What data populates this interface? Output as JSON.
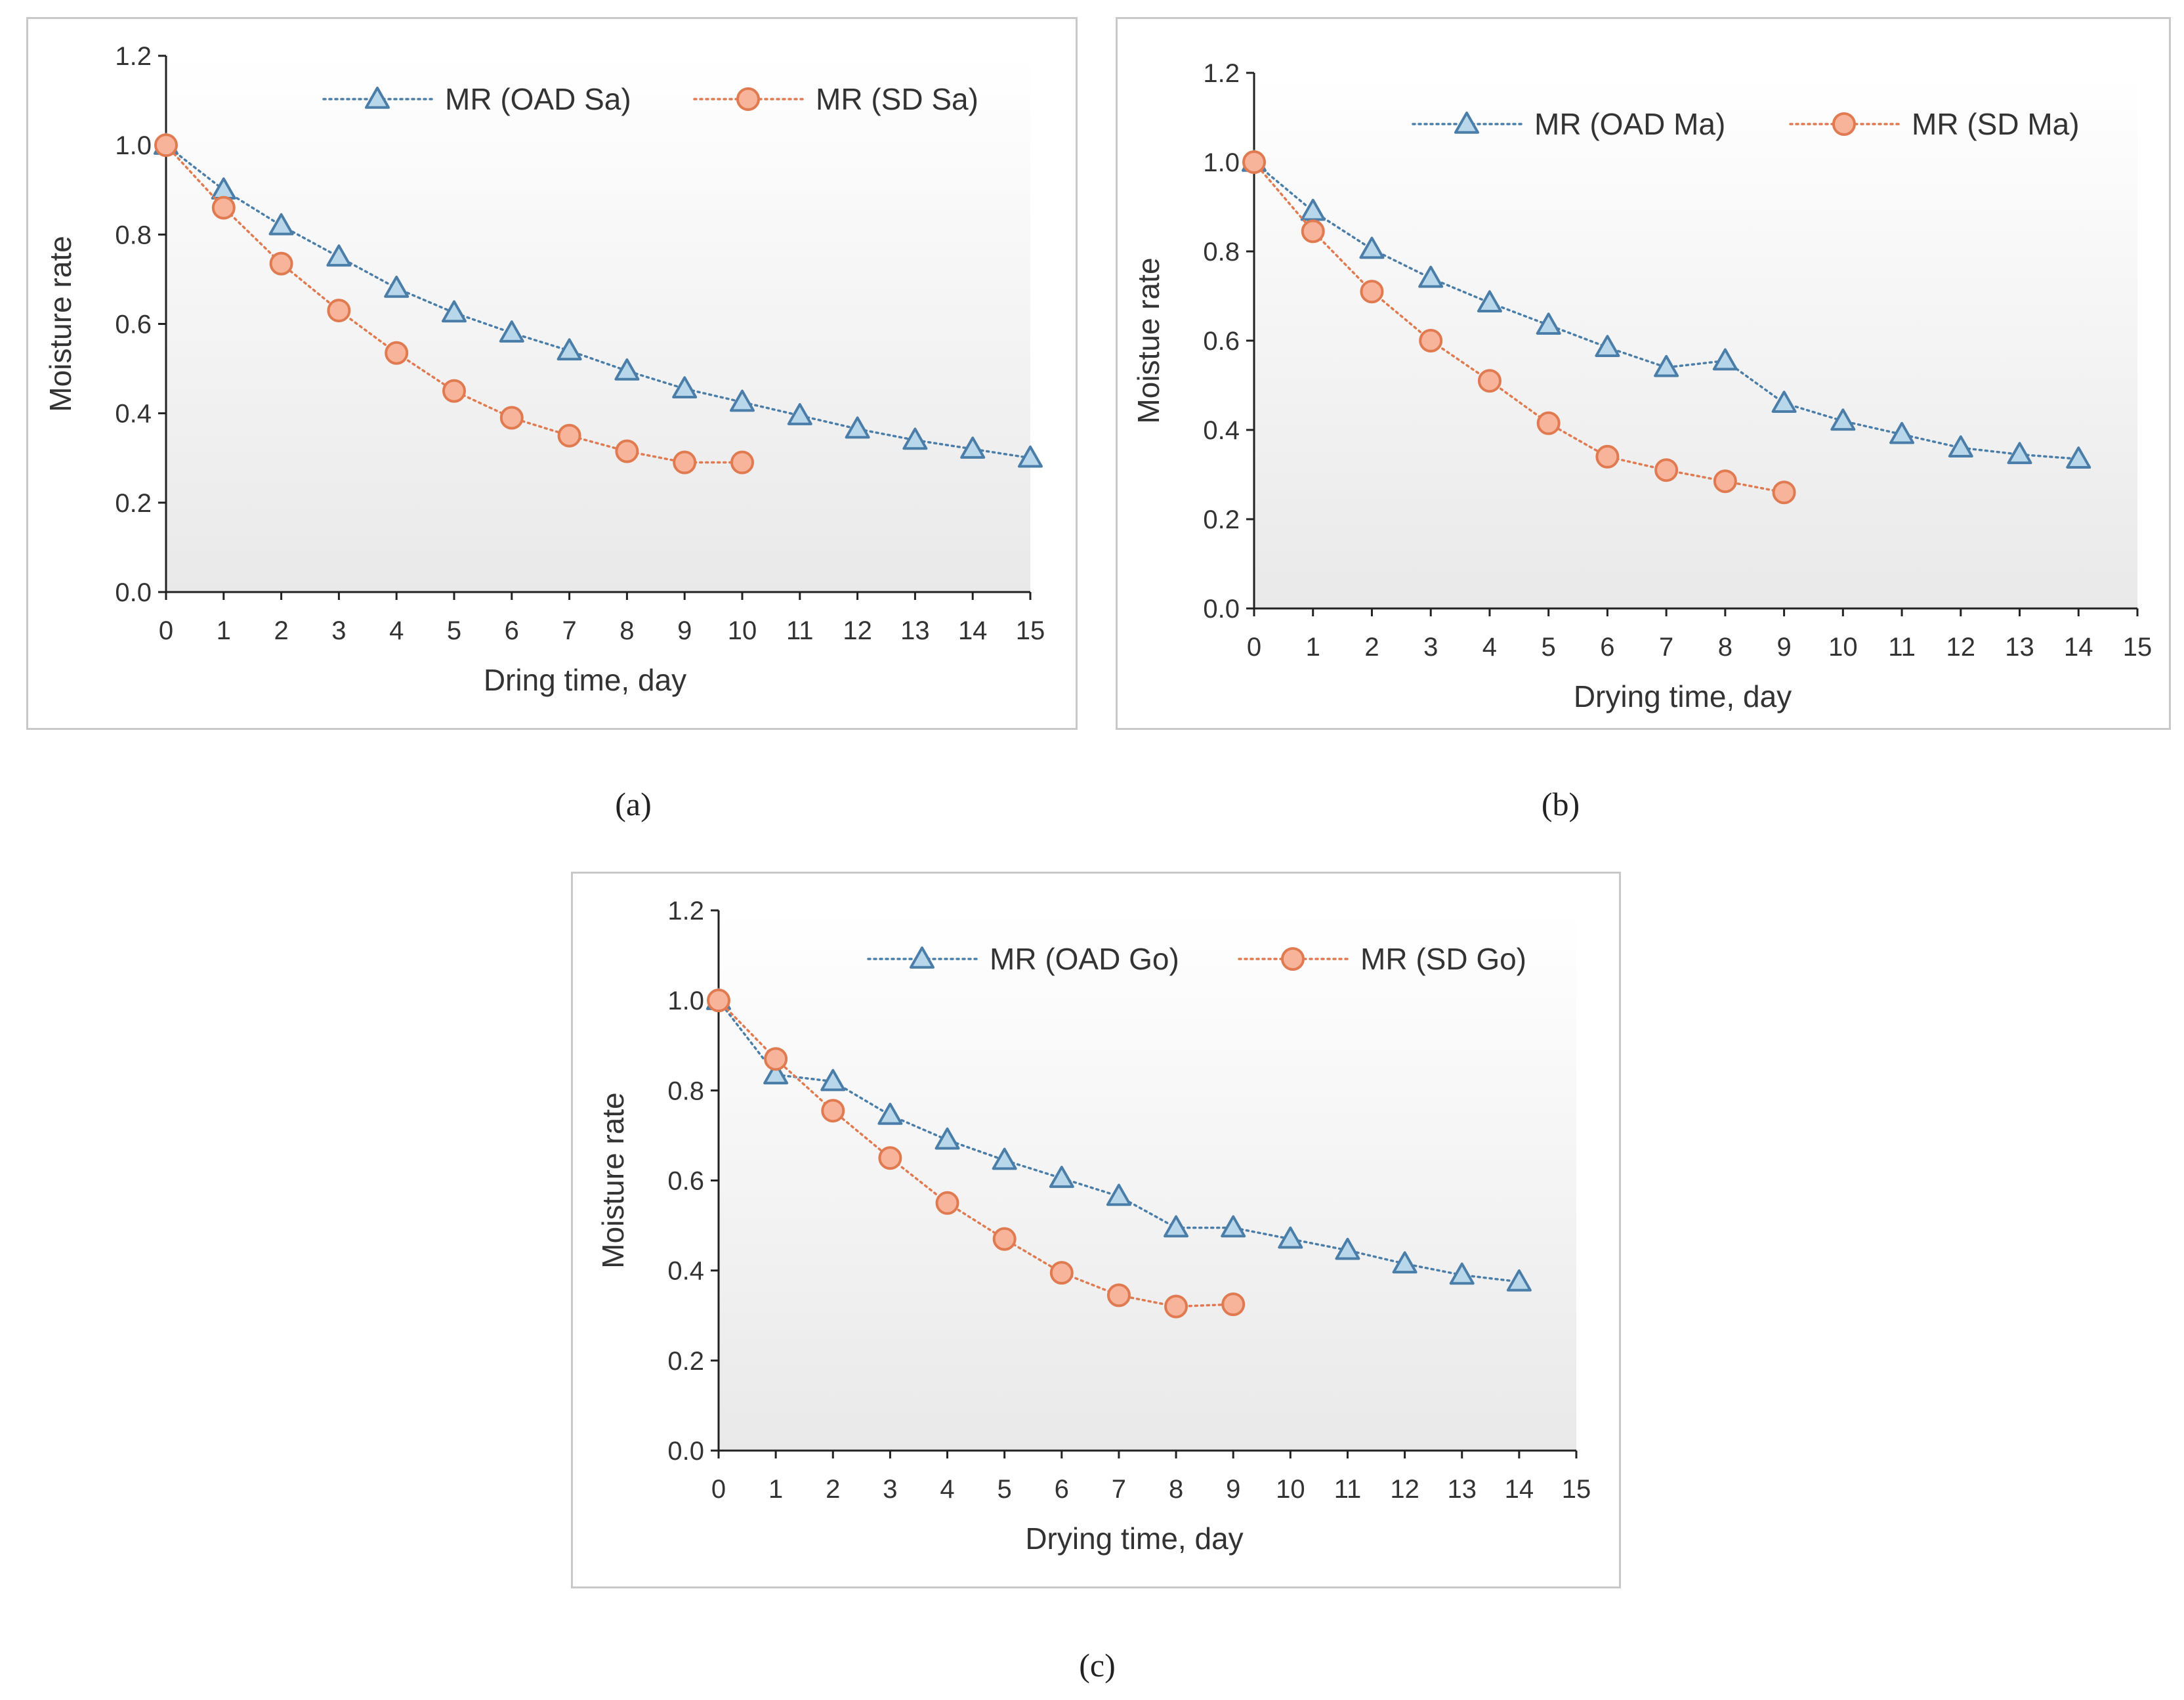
{
  "chart_data": [
    {
      "id": "a",
      "type": "line",
      "caption": "(a)",
      "xlabel": "Dring time, day",
      "ylabel": "Moisture rate",
      "xlim": [
        0,
        15
      ],
      "ylim": [
        0,
        1.2
      ],
      "xticks": [
        "0",
        "1",
        "2",
        "3",
        "4",
        "5",
        "6",
        "7",
        "8",
        "9",
        "10",
        "11",
        "12",
        "13",
        "14",
        "15"
      ],
      "yticks": [
        "0.0",
        "0.2",
        "0.4",
        "0.6",
        "0.8",
        "1.0",
        "1.2"
      ],
      "legend_position": "top",
      "series": [
        {
          "name": "MR (OAD Sa)",
          "marker": "triangle",
          "color": "#4a7ea8",
          "fill": "#b9d7ea",
          "x": [
            0,
            1,
            2,
            3,
            4,
            5,
            6,
            7,
            8,
            9,
            10,
            11,
            12,
            13,
            14,
            15
          ],
          "y": [
            1.0,
            0.9,
            0.82,
            0.75,
            0.68,
            0.625,
            0.58,
            0.54,
            0.495,
            0.455,
            0.425,
            0.395,
            0.365,
            0.34,
            0.32,
            0.3
          ]
        },
        {
          "name": "MR (SD Sa)",
          "marker": "circle",
          "color": "#e07a50",
          "fill": "#f7b49a",
          "x": [
            0,
            1,
            2,
            3,
            4,
            5,
            6,
            7,
            8,
            9,
            10
          ],
          "y": [
            1.0,
            0.86,
            0.735,
            0.63,
            0.535,
            0.45,
            0.39,
            0.35,
            0.315,
            0.29,
            0.29
          ]
        }
      ]
    },
    {
      "id": "b",
      "type": "line",
      "caption": "(b)",
      "xlabel": "Drying time, day",
      "ylabel": "Moistue rate",
      "xlim": [
        0,
        15
      ],
      "ylim": [
        0,
        1.2
      ],
      "xticks": [
        "0",
        "1",
        "2",
        "3",
        "4",
        "5",
        "6",
        "7",
        "8",
        "9",
        "10",
        "11",
        "12",
        "13",
        "14",
        "15"
      ],
      "yticks": [
        "0.0",
        "0.2",
        "0.4",
        "0.6",
        "0.8",
        "1.0",
        "1.2"
      ],
      "legend_position": "top",
      "series": [
        {
          "name": "MR (OAD Ma)",
          "marker": "triangle",
          "color": "#4a7ea8",
          "fill": "#b9d7ea",
          "x": [
            0,
            1,
            2,
            3,
            4,
            5,
            6,
            7,
            8,
            9,
            10,
            11,
            12,
            13,
            14
          ],
          "y": [
            1.0,
            0.89,
            0.805,
            0.74,
            0.685,
            0.635,
            0.585,
            0.54,
            0.555,
            0.46,
            0.42,
            0.39,
            0.36,
            0.345,
            0.335
          ]
        },
        {
          "name": "MR (SD Ma)",
          "marker": "circle",
          "color": "#e07a50",
          "fill": "#f7b49a",
          "x": [
            0,
            1,
            2,
            3,
            4,
            5,
            6,
            7,
            8,
            9
          ],
          "y": [
            1.0,
            0.845,
            0.71,
            0.6,
            0.51,
            0.415,
            0.34,
            0.31,
            0.285,
            0.26
          ]
        }
      ]
    },
    {
      "id": "c",
      "type": "line",
      "caption": "(c)",
      "xlabel": "Drying time, day",
      "ylabel": "Moisture rate",
      "xlim": [
        0,
        15
      ],
      "ylim": [
        0,
        1.2
      ],
      "xticks": [
        "0",
        "1",
        "2",
        "3",
        "4",
        "5",
        "6",
        "7",
        "8",
        "9",
        "10",
        "11",
        "12",
        "13",
        "14",
        "15"
      ],
      "yticks": [
        "0.0",
        "0.2",
        "0.4",
        "0.6",
        "0.8",
        "1.0",
        "1.2"
      ],
      "legend_position": "top",
      "series": [
        {
          "name": "MR (OAD Go)",
          "marker": "triangle",
          "color": "#4a7ea8",
          "fill": "#b9d7ea",
          "x": [
            0,
            1,
            2,
            3,
            4,
            5,
            6,
            7,
            8,
            9,
            10,
            11,
            12,
            13,
            14
          ],
          "y": [
            1.0,
            0.835,
            0.82,
            0.745,
            0.69,
            0.645,
            0.605,
            0.565,
            0.495,
            0.495,
            0.47,
            0.445,
            0.415,
            0.39,
            0.375
          ]
        },
        {
          "name": "MR (SD Go)",
          "marker": "circle",
          "color": "#e07a50",
          "fill": "#f7b49a",
          "x": [
            0,
            1,
            2,
            3,
            4,
            5,
            6,
            7,
            8,
            9
          ],
          "y": [
            1.0,
            0.87,
            0.755,
            0.65,
            0.55,
            0.47,
            0.395,
            0.345,
            0.32,
            0.325
          ]
        }
      ]
    }
  ]
}
